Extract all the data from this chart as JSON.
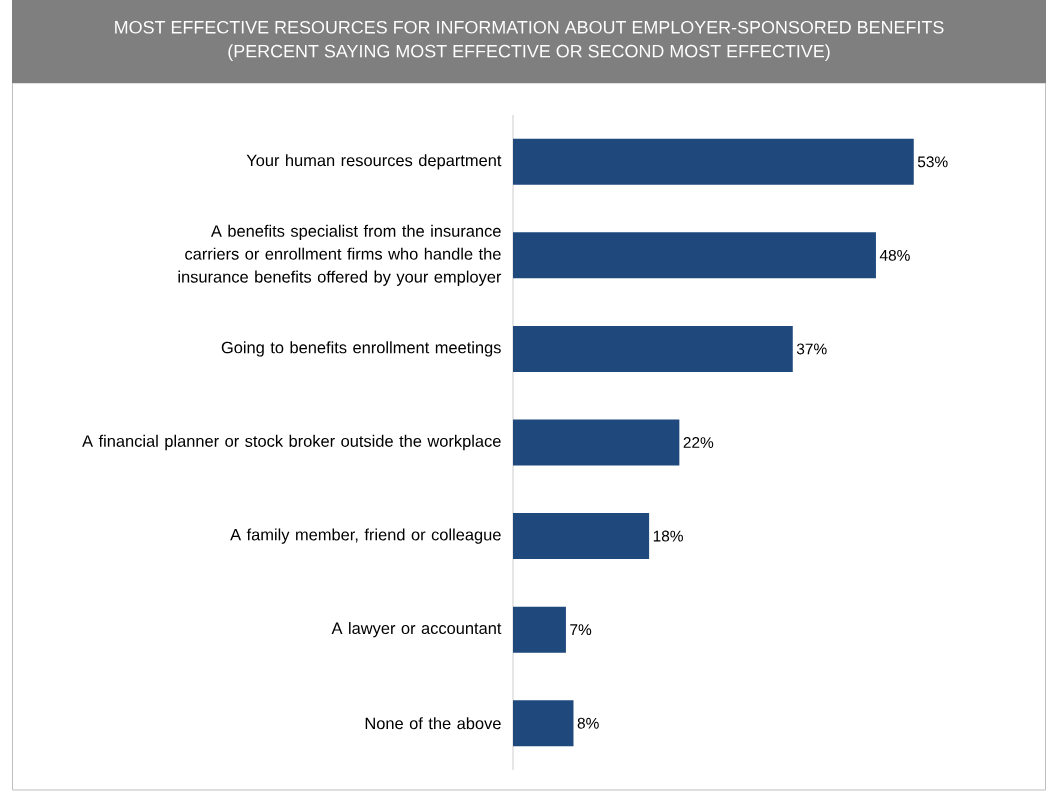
{
  "chart_data": {
    "type": "bar",
    "orientation": "horizontal",
    "title": "MOST EFFECTIVE RESOURCES FOR INFORMATION ABOUT EMPLOYER-SPONSORED BENEFITS",
    "subtitle": "(PERCENT SAYING MOST EFFECTIVE OR SECOND MOST EFFECTIVE)",
    "categories": [
      "Your human resources department",
      "A benefits specialist from the insurance carriers or enrollment firms who handle the insurance benefits offered by your employer",
      "Going to benefits enrollment meetings",
      "A financial planner or stock broker outside the workplace",
      "A family member, friend or colleague",
      "A lawyer or accountant",
      "None of the above"
    ],
    "values": [
      53,
      48,
      37,
      22,
      18,
      7,
      8
    ],
    "value_labels": [
      "53%",
      "48%",
      "37%",
      "22%",
      "18%",
      "7%",
      "8%"
    ],
    "color": "#1f497d"
  }
}
